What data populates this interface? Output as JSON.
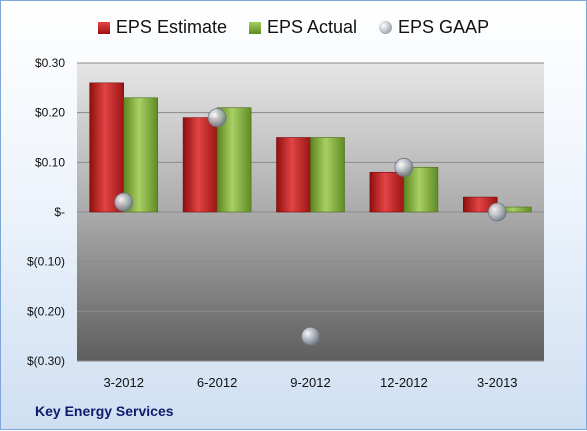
{
  "chart_data": {
    "type": "bar",
    "categories": [
      "3-2012",
      "6-2012",
      "9-2012",
      "12-2012",
      "3-2013"
    ],
    "series": [
      {
        "name": "EPS Estimate",
        "kind": "bar",
        "color": "#c81e1e",
        "values": [
          0.26,
          0.19,
          0.15,
          0.08,
          0.03
        ]
      },
      {
        "name": "EPS Actual",
        "kind": "bar",
        "color": "#7fab3a",
        "values": [
          0.23,
          0.21,
          0.15,
          0.09,
          0.01
        ]
      },
      {
        "name": "EPS GAAP",
        "kind": "marker",
        "color": "#b5bcc6",
        "values": [
          0.02,
          0.19,
          -0.25,
          0.09,
          0.0
        ]
      }
    ],
    "y_ticks": [
      {
        "value": 0.3,
        "label": "$0.30"
      },
      {
        "value": 0.2,
        "label": "$0.20"
      },
      {
        "value": 0.1,
        "label": "$0.10"
      },
      {
        "value": 0,
        "label": "$-"
      },
      {
        "value": -0.1,
        "label": "$(0.10)"
      },
      {
        "value": -0.2,
        "label": "$(0.20)"
      },
      {
        "value": -0.3,
        "label": "$(0.30)"
      }
    ],
    "ylim": [
      -0.3,
      0.3
    ],
    "grid": true,
    "legend_position": "top"
  },
  "legend": {
    "estimate": "EPS Estimate",
    "actual": "EPS Actual",
    "gaap": "EPS GAAP"
  },
  "company": "Key Energy Services"
}
